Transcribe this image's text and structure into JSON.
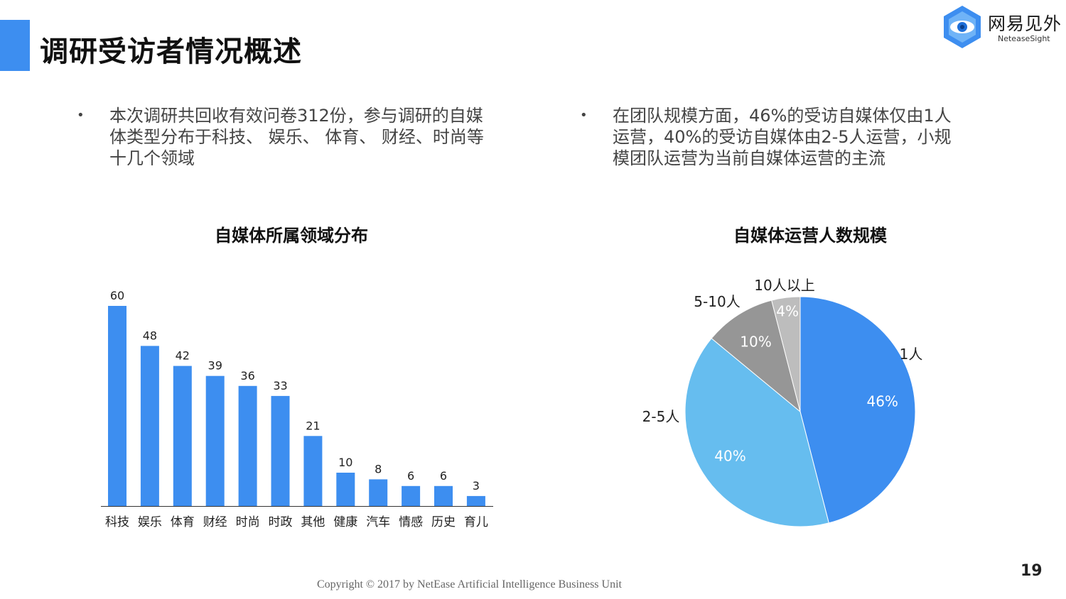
{
  "header": {
    "title": "调研受访者情况概述",
    "accent_color": "#3d8ef0"
  },
  "logo": {
    "name_cn": "网易见外",
    "name_en": "NeteaseSight",
    "icon": "hexagon-eye-icon"
  },
  "bullets": [
    {
      "text": "本次调研共回收有效问卷312份，参与调研的自媒体类型分布于科技、 娱乐、 体育、 财经、时尚等十几个领域"
    },
    {
      "text": "在团队规模方面，46%的受访自媒体仅由1人运营，40%的受访自媒体由2-5人运营，小规模团队运营为当前自媒体运营的主流"
    }
  ],
  "chart_data": [
    {
      "type": "bar",
      "title": "自媒体所属领域分布",
      "categories": [
        "科技",
        "娱乐",
        "体育",
        "财经",
        "时尚",
        "时政",
        "其他",
        "健康",
        "汽车",
        "情感",
        "历史",
        "育儿"
      ],
      "values": [
        60,
        48,
        42,
        39,
        36,
        33,
        21,
        10,
        8,
        6,
        6,
        3
      ],
      "color": "#3d8ef0",
      "ylim": [
        0,
        60
      ],
      "grid": false
    },
    {
      "type": "pie",
      "title": "自媒体运营人数规模",
      "labels": [
        "1人",
        "2-5人",
        "5-10人",
        "10人以上"
      ],
      "values": [
        46,
        40,
        10,
        4
      ],
      "value_labels": [
        "46%",
        "40%",
        "10%",
        "4%"
      ],
      "colors": [
        "#3d8ef0",
        "#66bdef",
        "#969696",
        "#bdbdbd"
      ]
    }
  ],
  "footer": {
    "page_number": "19",
    "copyright": "Copyright © 2017 by NetEase Artificial Intelligence Business Unit"
  }
}
